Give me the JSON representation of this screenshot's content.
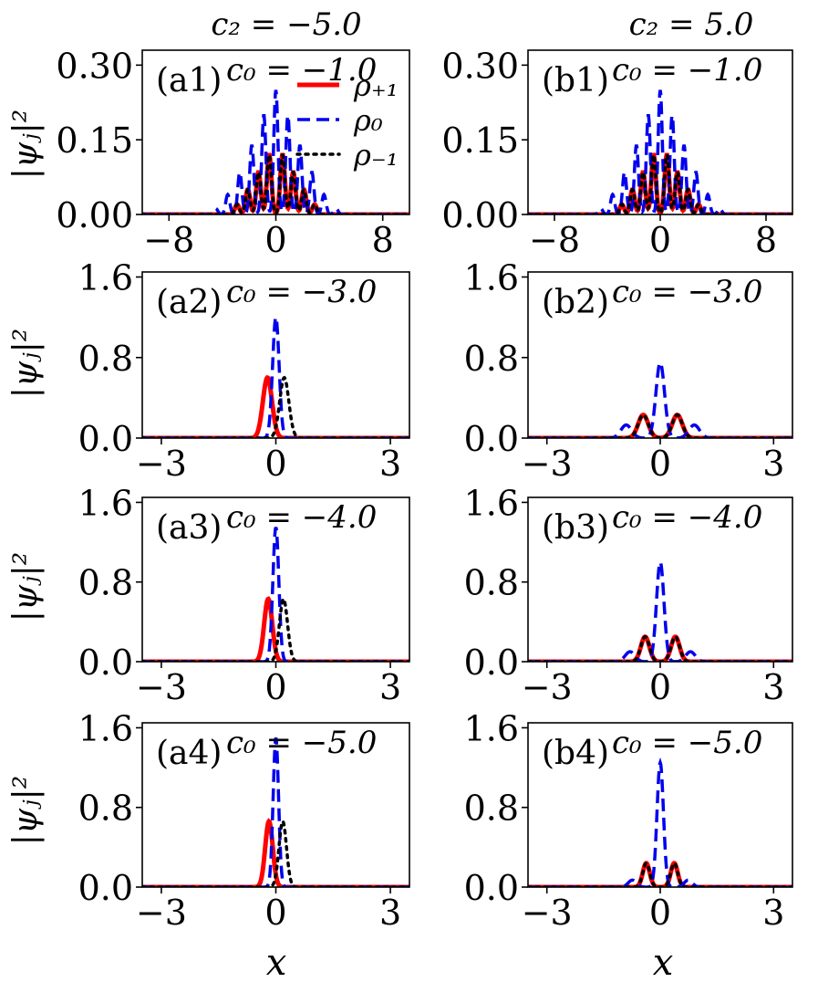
{
  "figure": {
    "column_titles": [
      "c₂ = −5.0",
      "c₂ = 5.0"
    ],
    "ylabel": "|ψⱼ|²",
    "xlabel": "x"
  },
  "legend": {
    "entries": [
      {
        "label": "ρ₊₁",
        "series": "rho_plus1"
      },
      {
        "label": "ρ₀",
        "series": "rho_0"
      },
      {
        "label": "ρ₋₁",
        "series": "rho_minus1"
      }
    ]
  },
  "series_style": {
    "rho_plus1": {
      "color": "#ff0000",
      "dash": "solid"
    },
    "rho_0": {
      "color": "#0000ee",
      "dash": "dashed"
    },
    "rho_minus1": {
      "color": "#000000",
      "dash": "dotted"
    }
  },
  "chart_data": [
    {
      "id": "a1",
      "type": "line",
      "label": "(a1)",
      "title": "c₀ = −1.0",
      "c2": -5.0,
      "c0": -1.0,
      "xlim": [
        -10,
        10
      ],
      "ylim": [
        0,
        0.33
      ],
      "xticks": [
        -8,
        0,
        8
      ],
      "xtick_labels": [
        "−8",
        "0",
        "8"
      ],
      "yticks": [
        0,
        0.15,
        0.3
      ],
      "ytick_labels": [
        "0.00",
        "0.15",
        "0.30"
      ],
      "series": [
        {
          "name": "rho_plus1",
          "peaks": [
            {
              "x": -0.5,
              "a": 0.12,
              "w": 0.24
            },
            {
              "x": 0.5,
              "a": 0.12,
              "w": 0.24
            },
            {
              "x": -1.3,
              "a": 0.085,
              "w": 0.24
            },
            {
              "x": 1.3,
              "a": 0.085,
              "w": 0.24
            },
            {
              "x": -2.1,
              "a": 0.05,
              "w": 0.24
            },
            {
              "x": 2.1,
              "a": 0.05,
              "w": 0.24
            },
            {
              "x": -2.9,
              "a": 0.02,
              "w": 0.24
            },
            {
              "x": 2.9,
              "a": 0.02,
              "w": 0.24
            }
          ]
        },
        {
          "name": "rho_0",
          "peaks": [
            {
              "x": 0,
              "a": 0.25,
              "w": 0.22
            },
            {
              "x": -0.9,
              "a": 0.2,
              "w": 0.22
            },
            {
              "x": 0.9,
              "a": 0.2,
              "w": 0.22
            },
            {
              "x": -1.8,
              "a": 0.14,
              "w": 0.22
            },
            {
              "x": 1.8,
              "a": 0.14,
              "w": 0.22
            },
            {
              "x": -2.7,
              "a": 0.085,
              "w": 0.22
            },
            {
              "x": 2.7,
              "a": 0.085,
              "w": 0.22
            },
            {
              "x": -3.6,
              "a": 0.04,
              "w": 0.22
            },
            {
              "x": 3.6,
              "a": 0.04,
              "w": 0.22
            },
            {
              "x": -4.5,
              "a": 0.012,
              "w": 0.22
            },
            {
              "x": 4.5,
              "a": 0.012,
              "w": 0.22
            }
          ]
        },
        {
          "name": "rho_minus1",
          "peaks": [
            {
              "x": -0.5,
              "a": 0.12,
              "w": 0.24
            },
            {
              "x": 0.5,
              "a": 0.12,
              "w": 0.24
            },
            {
              "x": -1.3,
              "a": 0.085,
              "w": 0.24
            },
            {
              "x": 1.3,
              "a": 0.085,
              "w": 0.24
            },
            {
              "x": -2.1,
              "a": 0.05,
              "w": 0.24
            },
            {
              "x": 2.1,
              "a": 0.05,
              "w": 0.24
            },
            {
              "x": -2.9,
              "a": 0.02,
              "w": 0.24
            },
            {
              "x": 2.9,
              "a": 0.02,
              "w": 0.24
            }
          ]
        }
      ]
    },
    {
      "id": "b1",
      "type": "line",
      "label": "(b1)",
      "title": "c₀ = −1.0",
      "c2": 5.0,
      "c0": -1.0,
      "xlim": [
        -10,
        10
      ],
      "ylim": [
        0,
        0.33
      ],
      "xticks": [
        -8,
        0,
        8
      ],
      "xtick_labels": [
        "−8",
        "0",
        "8"
      ],
      "yticks": [
        0,
        0.15,
        0.3
      ],
      "ytick_labels": [
        "0.00",
        "0.15",
        "0.30"
      ],
      "series": [
        {
          "name": "rho_plus1",
          "peaks": [
            {
              "x": -0.5,
              "a": 0.12,
              "w": 0.24
            },
            {
              "x": 0.5,
              "a": 0.12,
              "w": 0.24
            },
            {
              "x": -1.3,
              "a": 0.085,
              "w": 0.24
            },
            {
              "x": 1.3,
              "a": 0.085,
              "w": 0.24
            },
            {
              "x": -2.1,
              "a": 0.05,
              "w": 0.24
            },
            {
              "x": 2.1,
              "a": 0.05,
              "w": 0.24
            },
            {
              "x": -2.9,
              "a": 0.02,
              "w": 0.24
            },
            {
              "x": 2.9,
              "a": 0.02,
              "w": 0.24
            }
          ]
        },
        {
          "name": "rho_0",
          "peaks": [
            {
              "x": 0,
              "a": 0.25,
              "w": 0.22
            },
            {
              "x": -0.9,
              "a": 0.2,
              "w": 0.22
            },
            {
              "x": 0.9,
              "a": 0.2,
              "w": 0.22
            },
            {
              "x": -1.8,
              "a": 0.14,
              "w": 0.22
            },
            {
              "x": 1.8,
              "a": 0.14,
              "w": 0.22
            },
            {
              "x": -2.7,
              "a": 0.085,
              "w": 0.22
            },
            {
              "x": 2.7,
              "a": 0.085,
              "w": 0.22
            },
            {
              "x": -3.6,
              "a": 0.04,
              "w": 0.22
            },
            {
              "x": 3.6,
              "a": 0.04,
              "w": 0.22
            },
            {
              "x": -4.5,
              "a": 0.012,
              "w": 0.22
            },
            {
              "x": 4.5,
              "a": 0.012,
              "w": 0.22
            }
          ]
        },
        {
          "name": "rho_minus1",
          "peaks": [
            {
              "x": -0.5,
              "a": 0.12,
              "w": 0.24
            },
            {
              "x": 0.5,
              "a": 0.12,
              "w": 0.24
            },
            {
              "x": -1.3,
              "a": 0.085,
              "w": 0.24
            },
            {
              "x": 1.3,
              "a": 0.085,
              "w": 0.24
            },
            {
              "x": -2.1,
              "a": 0.05,
              "w": 0.24
            },
            {
              "x": 2.1,
              "a": 0.05,
              "w": 0.24
            },
            {
              "x": -2.9,
              "a": 0.02,
              "w": 0.24
            },
            {
              "x": 2.9,
              "a": 0.02,
              "w": 0.24
            }
          ]
        }
      ]
    },
    {
      "id": "a2",
      "type": "line",
      "label": "(a2)",
      "title": "c₀ = −3.0",
      "c2": -5.0,
      "c0": -3.0,
      "xlim": [
        -3.5,
        3.5
      ],
      "ylim": [
        0,
        1.65
      ],
      "xticks": [
        -3,
        0,
        3
      ],
      "xtick_labels": [
        "−3",
        "0",
        "3"
      ],
      "yticks": [
        0,
        0.8,
        1.6
      ],
      "ytick_labels": [
        "0.0",
        "0.8",
        "1.6"
      ],
      "series": [
        {
          "name": "rho_plus1",
          "peaks": [
            {
              "x": -0.22,
              "a": 0.6,
              "w": 0.17
            }
          ]
        },
        {
          "name": "rho_0",
          "peaks": [
            {
              "x": 0.0,
              "a": 1.2,
              "w": 0.12
            }
          ]
        },
        {
          "name": "rho_minus1",
          "peaks": [
            {
              "x": 0.22,
              "a": 0.6,
              "w": 0.17
            }
          ]
        }
      ]
    },
    {
      "id": "b2",
      "type": "line",
      "label": "(b2)",
      "title": "c₀ = −3.0",
      "c2": 5.0,
      "c0": -3.0,
      "xlim": [
        -3.5,
        3.5
      ],
      "ylim": [
        0,
        1.65
      ],
      "xticks": [
        -3,
        0,
        3
      ],
      "xtick_labels": [
        "−3",
        "0",
        "3"
      ],
      "yticks": [
        0,
        0.8,
        1.6
      ],
      "ytick_labels": [
        "0.0",
        "0.8",
        "1.6"
      ],
      "series": [
        {
          "name": "rho_plus1",
          "peaks": [
            {
              "x": -0.45,
              "a": 0.23,
              "w": 0.19
            },
            {
              "x": 0.45,
              "a": 0.23,
              "w": 0.19
            }
          ]
        },
        {
          "name": "rho_0",
          "peaks": [
            {
              "x": 0.0,
              "a": 0.75,
              "w": 0.16
            },
            {
              "x": -0.9,
              "a": 0.13,
              "w": 0.2
            },
            {
              "x": 0.9,
              "a": 0.13,
              "w": 0.2
            }
          ]
        },
        {
          "name": "rho_minus1",
          "peaks": [
            {
              "x": -0.45,
              "a": 0.23,
              "w": 0.19
            },
            {
              "x": 0.45,
              "a": 0.23,
              "w": 0.19
            }
          ]
        }
      ]
    },
    {
      "id": "a3",
      "type": "line",
      "label": "(a3)",
      "title": "c₀ = −4.0",
      "c2": -5.0,
      "c0": -4.0,
      "xlim": [
        -3.5,
        3.5
      ],
      "ylim": [
        0,
        1.65
      ],
      "xticks": [
        -3,
        0,
        3
      ],
      "xtick_labels": [
        "−3",
        "0",
        "3"
      ],
      "yticks": [
        0,
        0.8,
        1.6
      ],
      "ytick_labels": [
        "0.0",
        "0.8",
        "1.6"
      ],
      "series": [
        {
          "name": "rho_plus1",
          "peaks": [
            {
              "x": -0.2,
              "a": 0.63,
              "w": 0.15
            }
          ]
        },
        {
          "name": "rho_0",
          "peaks": [
            {
              "x": 0.0,
              "a": 1.35,
              "w": 0.11
            }
          ]
        },
        {
          "name": "rho_minus1",
          "peaks": [
            {
              "x": 0.2,
              "a": 0.63,
              "w": 0.15
            }
          ]
        }
      ]
    },
    {
      "id": "b3",
      "type": "line",
      "label": "(b3)",
      "title": "c₀ = −4.0",
      "c2": 5.0,
      "c0": -4.0,
      "xlim": [
        -3.5,
        3.5
      ],
      "ylim": [
        0,
        1.65
      ],
      "xticks": [
        -3,
        0,
        3
      ],
      "xtick_labels": [
        "−3",
        "0",
        "3"
      ],
      "yticks": [
        0,
        0.8,
        1.6
      ],
      "ytick_labels": [
        "0.0",
        "0.8",
        "1.6"
      ],
      "series": [
        {
          "name": "rho_plus1",
          "peaks": [
            {
              "x": -0.4,
              "a": 0.25,
              "w": 0.16
            },
            {
              "x": 0.4,
              "a": 0.25,
              "w": 0.16
            }
          ]
        },
        {
          "name": "rho_0",
          "peaks": [
            {
              "x": 0.0,
              "a": 1.0,
              "w": 0.14
            },
            {
              "x": -0.8,
              "a": 0.1,
              "w": 0.18
            },
            {
              "x": 0.8,
              "a": 0.1,
              "w": 0.18
            }
          ]
        },
        {
          "name": "rho_minus1",
          "peaks": [
            {
              "x": -0.4,
              "a": 0.25,
              "w": 0.16
            },
            {
              "x": 0.4,
              "a": 0.25,
              "w": 0.16
            }
          ]
        }
      ]
    },
    {
      "id": "a4",
      "type": "line",
      "label": "(a4)",
      "title": "c₀ = −5.0",
      "c2": -5.0,
      "c0": -5.0,
      "xlim": [
        -3.5,
        3.5
      ],
      "ylim": [
        0,
        1.65
      ],
      "xticks": [
        -3,
        0,
        3
      ],
      "xtick_labels": [
        "−3",
        "0",
        "3"
      ],
      "yticks": [
        0,
        0.8,
        1.6
      ],
      "ytick_labels": [
        "0.0",
        "0.8",
        "1.6"
      ],
      "series": [
        {
          "name": "rho_plus1",
          "peaks": [
            {
              "x": -0.18,
              "a": 0.66,
              "w": 0.14
            }
          ]
        },
        {
          "name": "rho_0",
          "peaks": [
            {
              "x": 0.0,
              "a": 1.5,
              "w": 0.1
            }
          ]
        },
        {
          "name": "rho_minus1",
          "peaks": [
            {
              "x": 0.18,
              "a": 0.66,
              "w": 0.14
            }
          ]
        }
      ]
    },
    {
      "id": "b4",
      "type": "line",
      "label": "(b4)",
      "title": "c₀ = −5.0",
      "c2": 5.0,
      "c0": -5.0,
      "xlim": [
        -3.5,
        3.5
      ],
      "ylim": [
        0,
        1.65
      ],
      "xticks": [
        -3,
        0,
        3
      ],
      "xtick_labels": [
        "−3",
        "0",
        "3"
      ],
      "yticks": [
        0,
        0.8,
        1.6
      ],
      "ytick_labels": [
        "0.0",
        "0.8",
        "1.6"
      ],
      "series": [
        {
          "name": "rho_plus1",
          "peaks": [
            {
              "x": -0.37,
              "a": 0.24,
              "w": 0.13
            },
            {
              "x": 0.37,
              "a": 0.24,
              "w": 0.13
            }
          ]
        },
        {
          "name": "rho_0",
          "peaks": [
            {
              "x": 0.0,
              "a": 1.25,
              "w": 0.12
            },
            {
              "x": -0.74,
              "a": 0.07,
              "w": 0.15
            },
            {
              "x": 0.74,
              "a": 0.07,
              "w": 0.15
            }
          ]
        },
        {
          "name": "rho_minus1",
          "peaks": [
            {
              "x": -0.37,
              "a": 0.24,
              "w": 0.13
            },
            {
              "x": 0.37,
              "a": 0.24,
              "w": 0.13
            }
          ]
        }
      ]
    }
  ]
}
